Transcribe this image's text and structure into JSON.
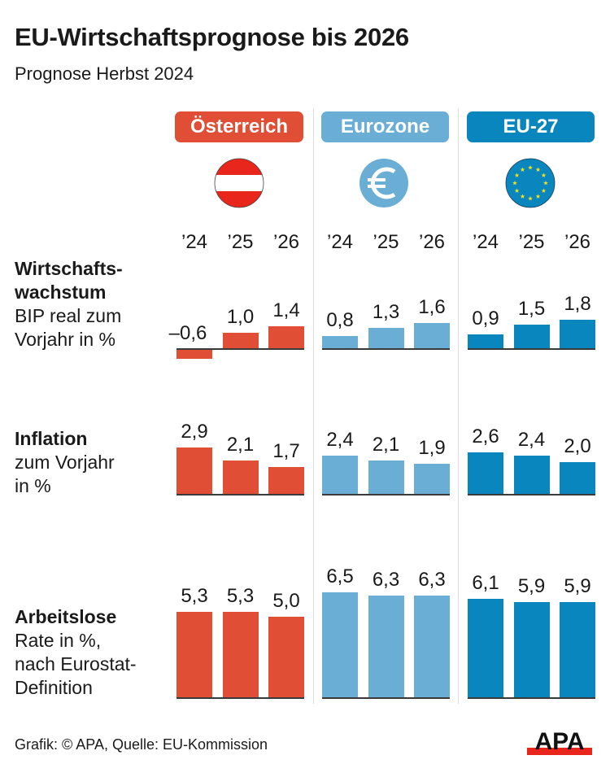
{
  "title": "EU-Wirtschaftsprognose bis 2026",
  "subtitle": "Prognose Herbst 2024",
  "footer": "Grafik: © APA, Quelle: EU-Kommission",
  "logo": "APA",
  "colors": {
    "oesterreich": "#e04e36",
    "eurozone": "#6aaed6",
    "eu27": "#0a86bf",
    "baseline": "#3a3a3a"
  },
  "chart_data": {
    "type": "bar",
    "title": "EU-Wirtschaftsprognose bis 2026",
    "subtitle": "Prognose Herbst 2024",
    "categories": [
      "’24",
      "’25",
      "’26"
    ],
    "groups": [
      {
        "key": "oesterreich",
        "label": "Österreich",
        "icon": "austria-flag-icon"
      },
      {
        "key": "eurozone",
        "label": "Eurozone",
        "icon": "euro-icon"
      },
      {
        "key": "eu27",
        "label": "EU-27",
        "icon": "eu-flag-icon"
      }
    ],
    "rows": [
      {
        "key": "wachstum",
        "title_lines": [
          "Wirtschafts-",
          "wachstum"
        ],
        "desc_lines": [
          "BIP real zum",
          "Vorjahr in %"
        ],
        "series": [
          {
            "name": "Österreich",
            "values": [
              -0.6,
              1.0,
              1.4
            ],
            "labels": [
              "–0,6",
              "1,0",
              "1,4"
            ]
          },
          {
            "name": "Eurozone",
            "values": [
              0.8,
              1.3,
              1.6
            ],
            "labels": [
              "0,8",
              "1,3",
              "1,6"
            ]
          },
          {
            "name": "EU-27",
            "values": [
              0.9,
              1.5,
              1.8
            ],
            "labels": [
              "0,9",
              "1,5",
              "1,8"
            ]
          }
        ]
      },
      {
        "key": "inflation",
        "title_lines": [
          "Inflation"
        ],
        "desc_lines": [
          "zum Vorjahr",
          "in %"
        ],
        "series": [
          {
            "name": "Österreich",
            "values": [
              2.9,
              2.1,
              1.7
            ],
            "labels": [
              "2,9",
              "2,1",
              "1,7"
            ]
          },
          {
            "name": "Eurozone",
            "values": [
              2.4,
              2.1,
              1.9
            ],
            "labels": [
              "2,4",
              "2,1",
              "1,9"
            ]
          },
          {
            "name": "EU-27",
            "values": [
              2.6,
              2.4,
              2.0
            ],
            "labels": [
              "2,6",
              "2,4",
              "2,0"
            ]
          }
        ]
      },
      {
        "key": "arbeitslose",
        "title_lines": [
          "Arbeitslose"
        ],
        "desc_lines": [
          "Rate in %,",
          "nach Eurostat-",
          "Definition"
        ],
        "series": [
          {
            "name": "Österreich",
            "values": [
              5.3,
              5.3,
              5.0
            ],
            "labels": [
              "5,3",
              "5,3",
              "5,0"
            ]
          },
          {
            "name": "Eurozone",
            "values": [
              6.5,
              6.3,
              6.3
            ],
            "labels": [
              "6,5",
              "6,3",
              "6,3"
            ]
          },
          {
            "name": "EU-27",
            "values": [
              6.1,
              5.9,
              5.9
            ],
            "labels": [
              "6,1",
              "5,9",
              "5,9"
            ]
          }
        ]
      }
    ],
    "xlabel": "",
    "ylabel": "%"
  }
}
